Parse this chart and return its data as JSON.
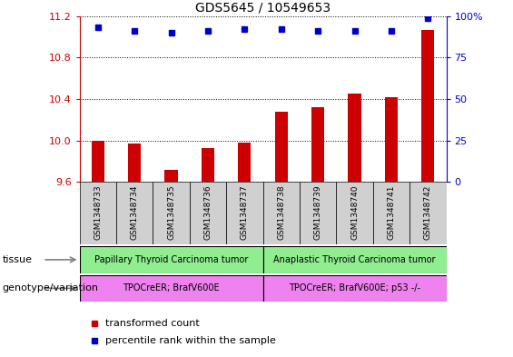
{
  "title": "GDS5645 / 10549653",
  "samples": [
    "GSM1348733",
    "GSM1348734",
    "GSM1348735",
    "GSM1348736",
    "GSM1348737",
    "GSM1348738",
    "GSM1348739",
    "GSM1348740",
    "GSM1348741",
    "GSM1348742"
  ],
  "bar_values": [
    10.0,
    9.97,
    9.72,
    9.93,
    9.98,
    10.28,
    10.32,
    10.45,
    10.42,
    11.07
  ],
  "dot_values": [
    93,
    91,
    90,
    91,
    92,
    92,
    91,
    91,
    91,
    99
  ],
  "bar_color": "#cc0000",
  "dot_color": "#0000cc",
  "ylim_left": [
    9.6,
    11.2
  ],
  "ylim_right": [
    0,
    100
  ],
  "yticks_left": [
    9.6,
    10.0,
    10.4,
    10.8,
    11.2
  ],
  "yticks_right": [
    0,
    25,
    50,
    75,
    100
  ],
  "ytick_labels_right": [
    "0",
    "25",
    "50",
    "75",
    "100%"
  ],
  "tissue_labels": [
    "Papillary Thyroid Carcinoma tumor",
    "Anaplastic Thyroid Carcinoma tumor"
  ],
  "tissue_color": "#90ee90",
  "tissue_split": 5,
  "genotype_labels": [
    "TPOCreER; BrafV600E",
    "TPOCreER; BrafV600E; p53 -/-"
  ],
  "genotype_color": "#ee82ee",
  "row_label_tissue": "tissue",
  "row_label_genotype": "genotype/variation",
  "legend_bar_label": "transformed count",
  "legend_dot_label": "percentile rank within the sample",
  "xticklabel_bg": "#d0d0d0",
  "grid_color": "#000000",
  "bar_width": 0.35
}
